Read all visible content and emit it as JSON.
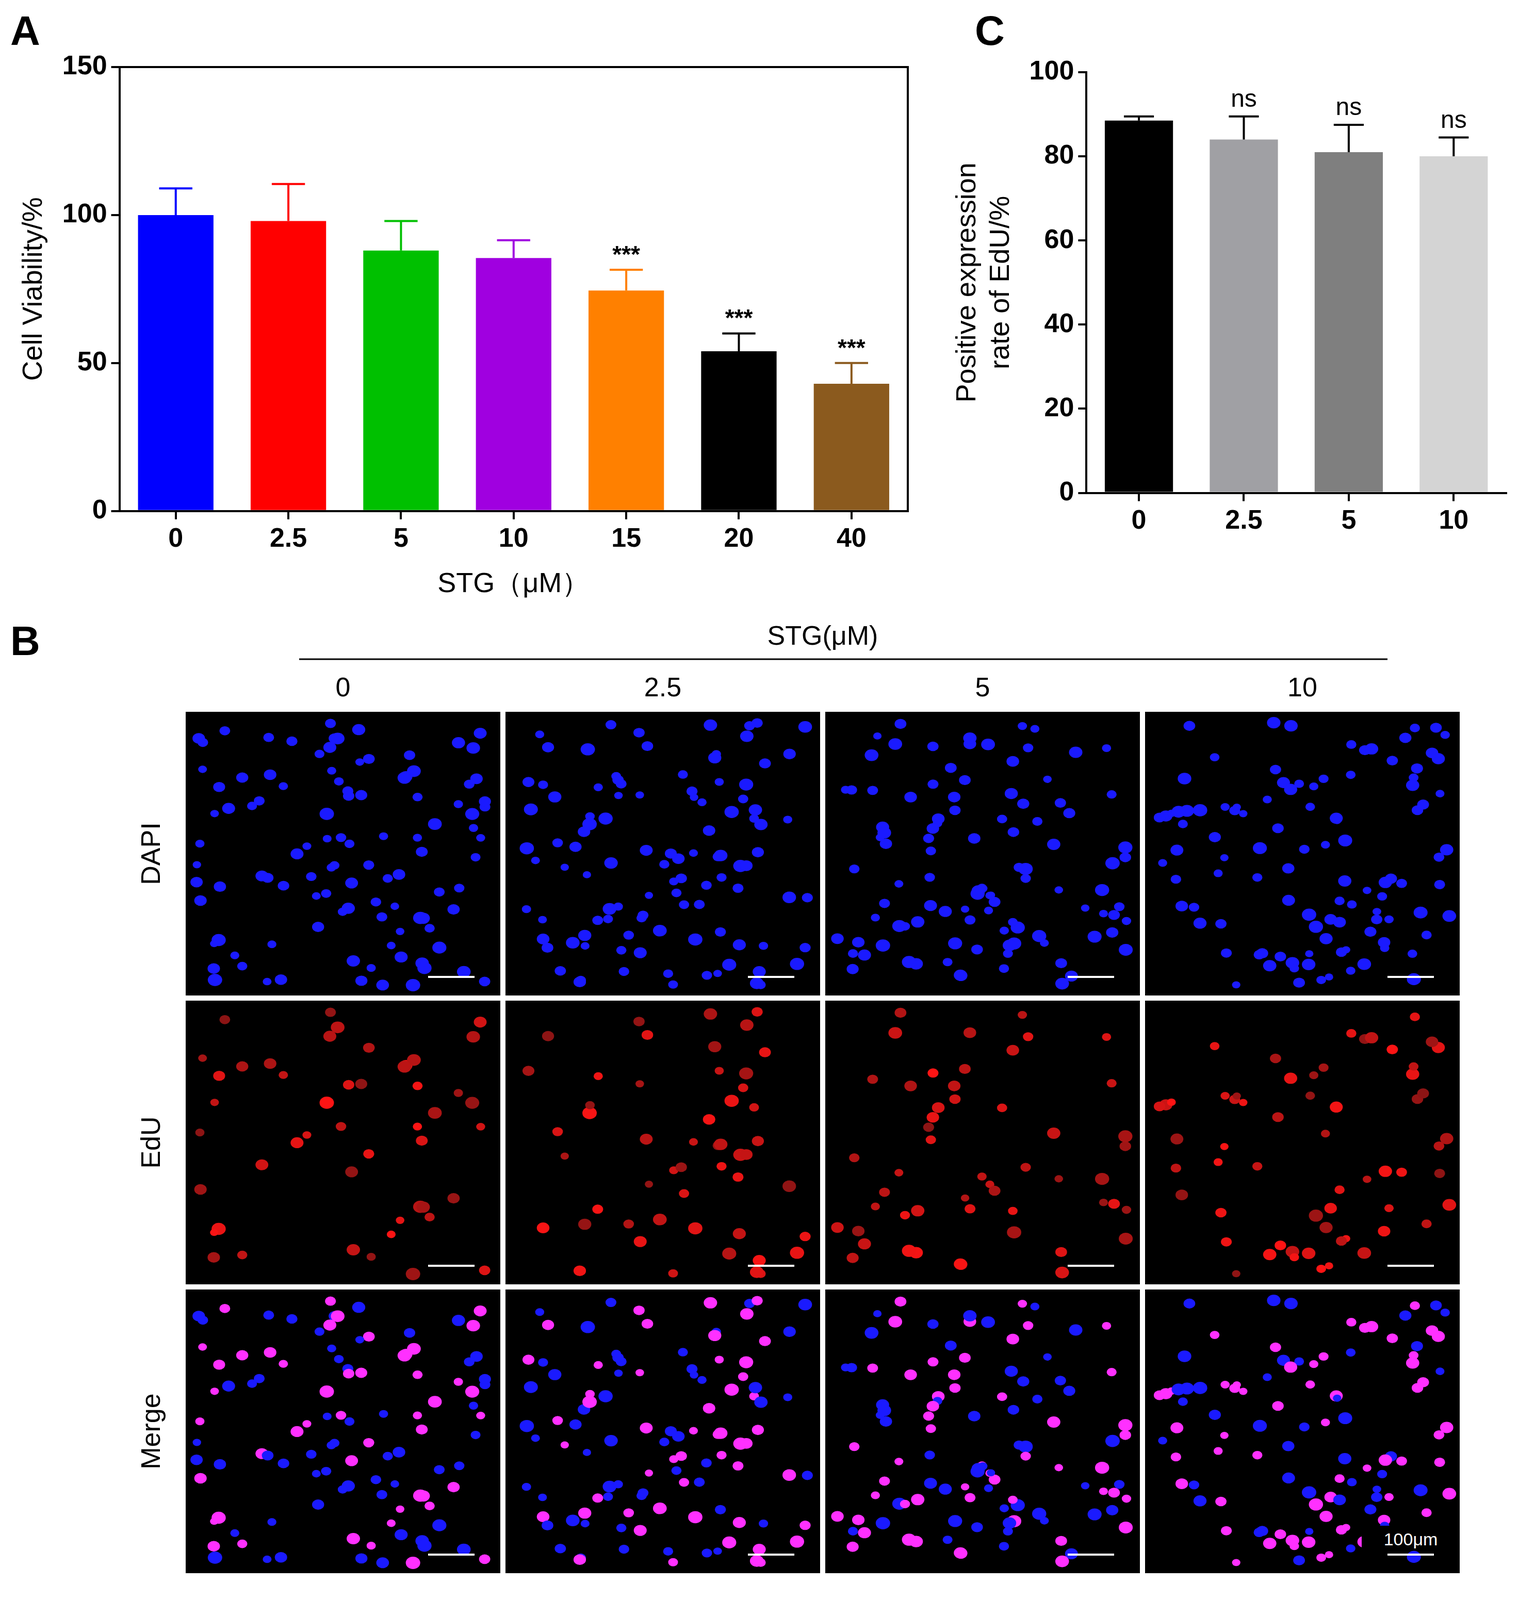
{
  "chart_data": [
    {
      "panel_label": "A",
      "type": "bar",
      "categories": [
        "0",
        "2.5",
        "5",
        "10",
        "15",
        "20",
        "40"
      ],
      "values": [
        100,
        98,
        88,
        85.5,
        74.5,
        54,
        43
      ],
      "errors": [
        9,
        12.5,
        10,
        6,
        7,
        6,
        7
      ],
      "colors": [
        "#0000ff",
        "#ff0000",
        "#00c000",
        "#a000e0",
        "#ff8000",
        "#000000",
        "#8b5a1e"
      ],
      "annotations": [
        null,
        null,
        null,
        null,
        "***",
        "***",
        "***"
      ],
      "x_label": "STG（μM）",
      "y_label": "Cell Viability/%",
      "ylim": [
        0,
        150
      ],
      "yticks": [
        0,
        50,
        100,
        150
      ],
      "grid": false
    },
    {
      "panel_label": "C",
      "type": "bar",
      "categories": [
        "0",
        "2.5",
        "5",
        "10"
      ],
      "values": [
        88.5,
        84,
        81,
        80
      ],
      "errors": [
        1,
        5.5,
        6.5,
        4.5
      ],
      "colors": [
        "#000000",
        "#a0a0a4",
        "#7f7f7f",
        "#d4d4d4"
      ],
      "annotations": [
        null,
        "ns",
        "ns",
        "ns"
      ],
      "y_label": [
        "Positive expression",
        "rate of EdU/%"
      ],
      "ylim": [
        0,
        100
      ],
      "yticks": [
        0,
        20,
        40,
        60,
        80,
        100
      ],
      "grid": false
    }
  ],
  "image_panel": {
    "panel_label": "B",
    "title": "STG(μM)",
    "columns": [
      "0",
      "2.5",
      "5",
      "10"
    ],
    "rows": [
      "DAPI",
      "EdU",
      "Merge"
    ],
    "scale_bar": "100μm"
  }
}
